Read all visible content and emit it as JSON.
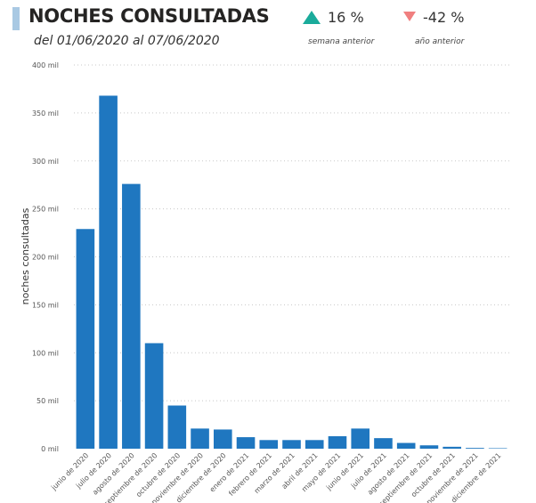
{
  "header": {
    "title": "NOCHES CONSULTADAS",
    "subtitle": "del 01/06/2020 al 07/06/2020",
    "kpis": [
      {
        "value": "16 %",
        "label": "semana anterior",
        "direction": "up",
        "color": "#1aab9b"
      },
      {
        "value": "-42 %",
        "label": "año anterior",
        "direction": "down",
        "color": "#f07f7f"
      }
    ]
  },
  "chart_data": {
    "type": "bar",
    "title": "NOCHES CONSULTADAS",
    "xlabel": "",
    "ylabel": "noches consultadas",
    "ylim": [
      0,
      400
    ],
    "yticks": [
      0,
      50,
      100,
      150,
      200,
      250,
      300,
      350,
      400
    ],
    "ytick_labels": [
      "0 mil",
      "50 mil",
      "100 mil",
      "150 mil",
      "200 mil",
      "250 mil",
      "300 mil",
      "350 mil",
      "400 mil"
    ],
    "grid": true,
    "bar_color": "#1f77c0",
    "categories": [
      "junio de 2020",
      "julio de 2020",
      "agosto de 2020",
      "septiembre de 2020",
      "octubre de 2020",
      "noviembre de 2020",
      "diciembre de 2020",
      "enero de 2021",
      "febrero de 2021",
      "marzo de 2021",
      "abril de 2021",
      "mayo de 2021",
      "junio de 2021",
      "julio de 2021",
      "agosto de 2021",
      "septiembre de 2021",
      "octubre de 2021",
      "noviembre de 2021",
      "diciembre de 2021"
    ],
    "values": [
      229,
      368,
      276,
      110,
      45,
      21,
      20,
      12,
      9,
      9,
      9,
      13,
      21,
      11,
      6,
      3.5,
      2,
      0.8,
      0.5
    ]
  }
}
